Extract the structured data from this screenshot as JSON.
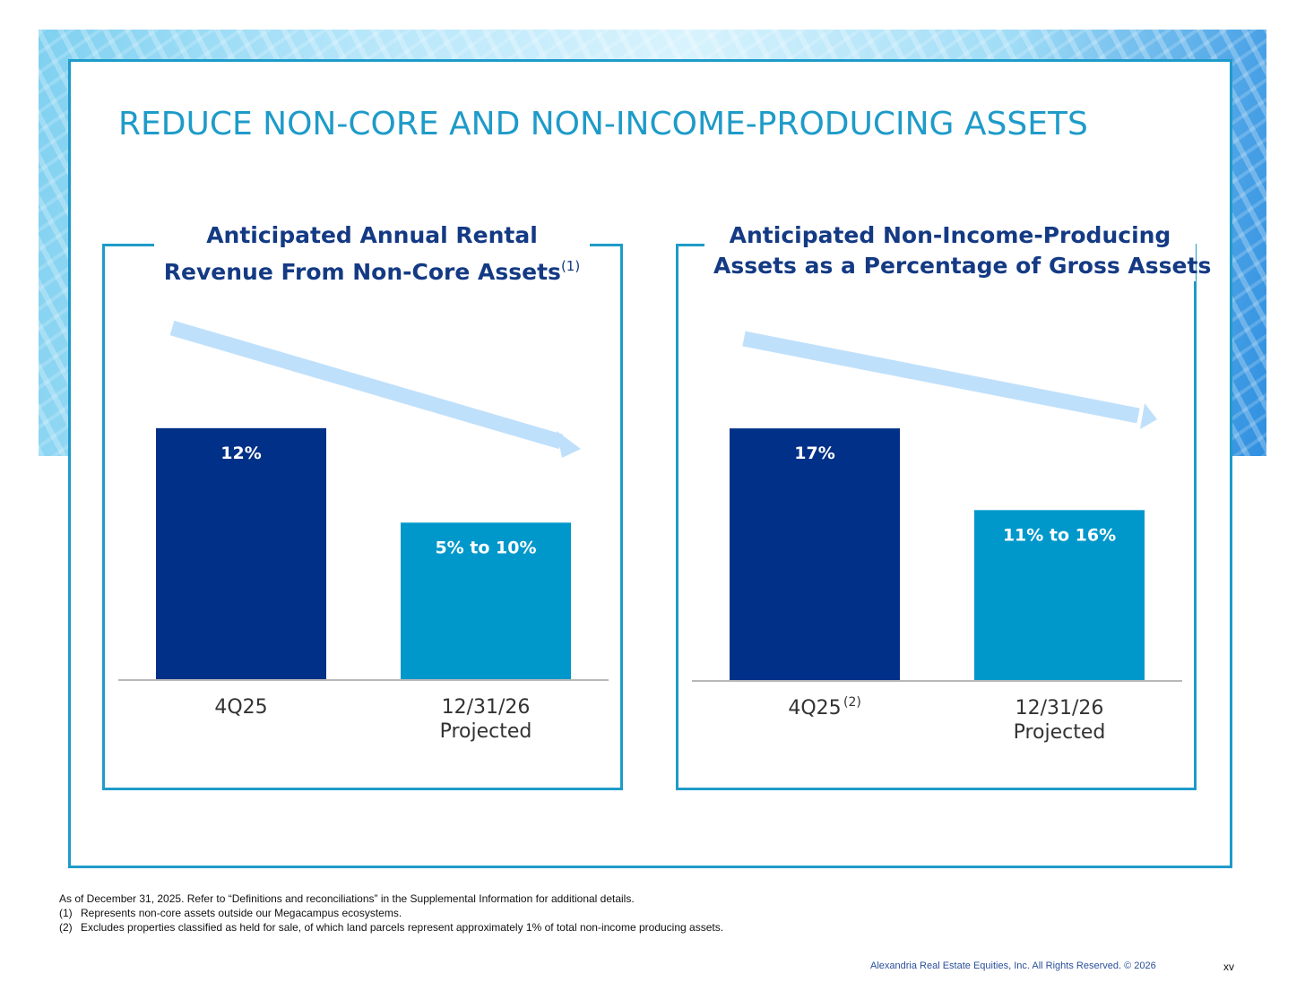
{
  "slide": {
    "title": "REDUCE NON-CORE AND NON-INCOME-PRODUCING ASSETS",
    "accent_color": "#1e9bc8"
  },
  "chart_data": [
    {
      "type": "bar",
      "title_line1": "Anticipated Annual Rental",
      "title_line2": "Revenue From Non-Core Assets",
      "title_sup": "(1)",
      "categories": [
        {
          "label": "4Q25",
          "sup": ""
        },
        {
          "label": "12/31/26",
          "sub_label": "Projected"
        }
      ],
      "values": [
        12,
        7.5
      ],
      "data_labels": [
        "12%",
        "5% to 10%"
      ],
      "colors": [
        "#003087",
        "#0098cb"
      ],
      "ylim": [
        0,
        14
      ],
      "trend": "decreasing"
    },
    {
      "type": "bar",
      "title_line1": "Anticipated Non-Income-Producing",
      "title_line2": "Assets as a Percentage of Gross Assets",
      "title_sup": "",
      "categories": [
        {
          "label": "4Q25",
          "sup": "(2)"
        },
        {
          "label": "12/31/26",
          "sub_label": "Projected"
        }
      ],
      "values": [
        17,
        11.5
      ],
      "data_labels": [
        "17%",
        "11% to 16%"
      ],
      "colors": [
        "#003087",
        "#0098cb"
      ],
      "ylim": [
        0,
        19.6
      ],
      "trend": "decreasing"
    }
  ],
  "footnotes": {
    "intro": "As of December 31, 2025. Refer to “Definitions and reconciliations” in the Supplemental Information for additional details.",
    "items": [
      {
        "num": "(1)",
        "text": "Represents non-core assets outside our Megacampus ecosystems."
      },
      {
        "num": "(2)",
        "text": "Excludes properties classified as held for sale, of which land parcels represent approximately 1% of total non-income producing assets."
      }
    ]
  },
  "footer": {
    "copyright": "Alexandria Real Estate Equities, Inc. All Rights Reserved. © 2026",
    "page_number": "xv"
  }
}
